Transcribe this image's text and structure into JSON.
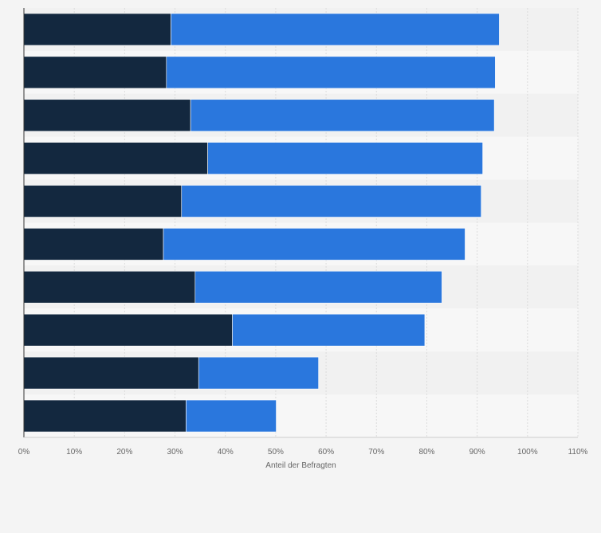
{
  "chart_data": {
    "type": "bar",
    "orientation": "horizontal",
    "stacked": true,
    "xlabel": "Anteil der Befragten",
    "ylabel": "",
    "xlim": [
      0,
      110
    ],
    "x_ticks": [
      "0%",
      "10%",
      "20%",
      "30%",
      "40%",
      "50%",
      "60%",
      "70%",
      "80%",
      "90%",
      "100%",
      "110%"
    ],
    "categories": [
      "",
      "",
      "",
      "",
      "",
      "",
      "",
      "",
      "",
      ""
    ],
    "grid": true,
    "legend": "none",
    "series": [
      {
        "color": "#13283f",
        "values": [
          29.2,
          28.3,
          33.1,
          36.5,
          31.3,
          27.7,
          34.0,
          41.4,
          34.7,
          32.2
        ]
      },
      {
        "color": "#2a77dd",
        "values": [
          65.2,
          65.3,
          60.3,
          54.6,
          59.5,
          59.9,
          49.0,
          38.2,
          23.8,
          17.9
        ]
      }
    ]
  }
}
